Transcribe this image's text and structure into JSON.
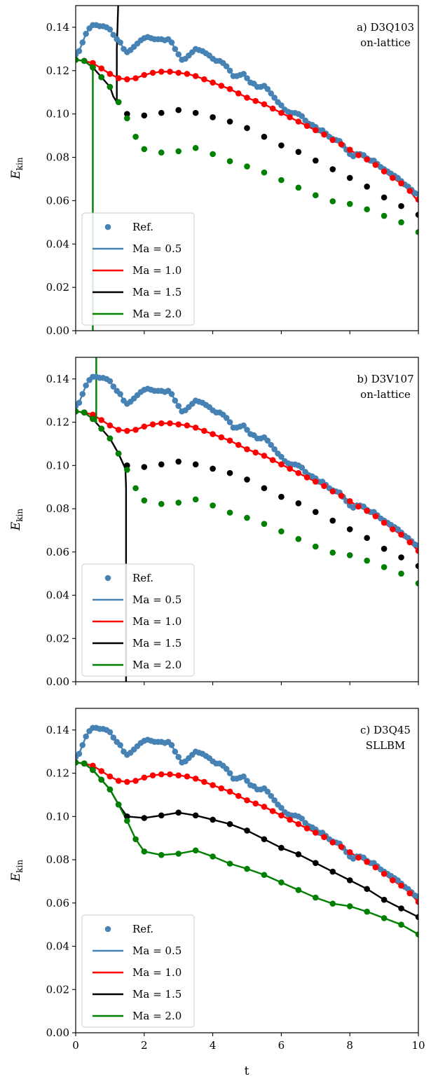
{
  "figure": {
    "xlabel": "t",
    "ylabel_main": "E",
    "ylabel_sub": "kin"
  },
  "legend": {
    "entries": [
      {
        "label": "Ref.",
        "kind": "marker",
        "color": "#4682b4"
      },
      {
        "label": "Ma = 0.5",
        "kind": "line",
        "color": "#4682b4"
      },
      {
        "label": "Ma = 1.0",
        "kind": "line",
        "color": "#ff0000"
      },
      {
        "label": "Ma = 1.5",
        "kind": "line",
        "color": "#000000"
      },
      {
        "label": "Ma = 2.0",
        "kind": "line",
        "color": "#008000"
      }
    ]
  },
  "chart_data": [
    {
      "type": "line",
      "annotation": [
        "a) D3Q103",
        "on-lattice"
      ],
      "xlim": [
        0,
        10
      ],
      "ylim": [
        0,
        0.15
      ],
      "xticks": [
        0,
        2,
        4,
        6,
        8,
        10
      ],
      "yticks": [
        "0.00",
        "0.02",
        "0.04",
        "0.06",
        "0.08",
        "0.10",
        "0.12",
        "0.14"
      ],
      "show_xtick_labels": false,
      "legend_position": "lower-left",
      "reference_markers": {
        "name": "Ref.",
        "series": [
          {
            "ma": "0.5",
            "color": "#4682b4",
            "x": [
              0,
              0.1,
              0.2,
              0.3,
              0.4,
              0.5,
              0.6,
              0.7,
              0.8,
              0.9,
              1.0,
              1.1,
              1.2,
              1.3,
              1.4,
              1.5,
              1.6,
              1.7,
              1.8,
              1.9,
              2.0,
              2.1,
              2.2,
              2.3,
              2.4,
              2.5,
              2.6,
              2.7,
              2.8,
              2.9,
              3.0,
              3.1,
              3.2,
              3.3,
              3.4,
              3.5,
              3.6,
              3.7,
              3.8,
              3.9,
              4.0,
              4.1,
              4.2,
              4.3,
              4.4,
              4.5,
              4.6,
              4.7,
              4.8,
              4.9,
              5.0,
              5.1,
              5.2,
              5.3,
              5.4,
              5.5,
              5.6,
              5.7,
              5.8,
              5.9,
              6.0,
              6.1,
              6.2,
              6.3,
              6.4,
              6.5,
              6.6,
              6.7,
              6.8,
              6.9,
              7.0,
              7.1,
              7.2,
              7.3,
              7.4,
              7.5,
              7.6,
              7.7,
              7.8,
              7.9,
              8.0,
              8.1,
              8.2,
              8.3,
              8.4,
              8.5,
              8.6,
              8.7,
              8.8,
              8.9,
              9.0,
              9.1,
              9.2,
              9.3,
              9.4,
              9.5,
              9.6,
              9.7,
              9.8,
              9.9,
              10.0
            ],
            "y": [
              0.1275,
              0.129,
              0.133,
              0.137,
              0.1395,
              0.141,
              0.141,
              0.1405,
              0.1405,
              0.14,
              0.139,
              0.1365,
              0.1345,
              0.133,
              0.13,
              0.1285,
              0.1295,
              0.131,
              0.1325,
              0.134,
              0.135,
              0.1355,
              0.135,
              0.1345,
              0.1345,
              0.1345,
              0.134,
              0.1345,
              0.133,
              0.13,
              0.1275,
              0.125,
              0.1255,
              0.127,
              0.1285,
              0.13,
              0.1295,
              0.129,
              0.128,
              0.127,
              0.1255,
              0.1245,
              0.1245,
              0.1235,
              0.122,
              0.12,
              0.1175,
              0.1175,
              0.118,
              0.1185,
              0.1165,
              0.1145,
              0.114,
              0.1125,
              0.1125,
              0.113,
              0.1115,
              0.1095,
              0.1075,
              0.1055,
              0.104,
              0.102,
              0.101,
              0.1005,
              0.1005,
              0.1,
              0.099,
              0.097,
              0.0955,
              0.095,
              0.094,
              0.0925,
              0.0925,
              0.091,
              0.0895,
              0.0885,
              0.088,
              0.0875,
              0.0855,
              0.0835,
              0.0815,
              0.0805,
              0.0815,
              0.0815,
              0.081,
              0.0795,
              0.0785,
              0.0785,
              0.077,
              0.0755,
              0.0745,
              0.0735,
              0.0725,
              0.0715,
              0.0705,
              0.069,
              0.0675,
              0.0665,
              0.065,
              0.0635,
              0.063
            ]
          },
          {
            "ma": "1.0",
            "color": "#ff0000",
            "x": [
              0,
              0.25,
              0.5,
              0.75,
              1.0,
              1.25,
              1.5,
              1.75,
              2.0,
              2.25,
              2.5,
              2.75,
              3.0,
              3.25,
              3.5,
              3.75,
              4.0,
              4.25,
              4.5,
              4.75,
              5.0,
              5.25,
              5.5,
              5.75,
              6.0,
              6.25,
              6.5,
              6.75,
              7.0,
              7.25,
              7.5,
              7.75,
              8.0,
              8.25,
              8.5,
              8.75,
              9.0,
              9.25,
              9.5,
              9.75,
              10.0
            ],
            "y": [
              0.125,
              0.1245,
              0.1235,
              0.121,
              0.1185,
              0.1165,
              0.116,
              0.1165,
              0.118,
              0.119,
              0.1195,
              0.1195,
              0.119,
              0.1185,
              0.1175,
              0.116,
              0.1145,
              0.113,
              0.1115,
              0.1095,
              0.1075,
              0.106,
              0.1045,
              0.1025,
              0.1005,
              0.0985,
              0.0965,
              0.0945,
              0.0925,
              0.0905,
              0.088,
              0.086,
              0.0835,
              0.081,
              0.079,
              0.0765,
              0.0735,
              0.0705,
              0.068,
              0.0645,
              0.0605
            ]
          },
          {
            "ma": "1.5",
            "color": "#000000",
            "x": [
              0,
              0.25,
              0.5,
              0.75,
              1.0,
              1.25,
              1.5,
              2.0,
              2.5,
              3.0,
              3.5,
              4.0,
              4.5,
              5.0,
              5.5,
              6.0,
              6.5,
              7.0,
              7.5,
              8.0,
              8.5,
              9.0,
              9.5,
              10.0
            ],
            "y": [
              0.125,
              0.1245,
              0.1215,
              0.117,
              0.1125,
              0.1055,
              0.1,
              0.0993,
              0.1005,
              0.1018,
              0.1005,
              0.0985,
              0.0965,
              0.0935,
              0.0895,
              0.0855,
              0.0825,
              0.0785,
              0.0745,
              0.0705,
              0.0665,
              0.0615,
              0.0575,
              0.0535
            ]
          },
          {
            "ma": "2.0",
            "color": "#008000",
            "x": [
              0,
              0.25,
              0.5,
              0.75,
              1.0,
              1.25,
              1.5,
              1.75,
              2.0,
              2.5,
              3.0,
              3.5,
              4.0,
              4.5,
              5.0,
              5.5,
              6.0,
              6.5,
              7.0,
              7.5,
              8.0,
              8.5,
              9.0,
              9.5,
              10.0
            ],
            "y": [
              0.125,
              0.1245,
              0.1215,
              0.117,
              0.1125,
              0.1055,
              0.098,
              0.0895,
              0.0838,
              0.0822,
              0.0828,
              0.0843,
              0.0815,
              0.0782,
              0.0758,
              0.073,
              0.0695,
              0.066,
              0.0625,
              0.0597,
              0.0585,
              0.056,
              0.053,
              0.05,
              0.0455
            ]
          }
        ]
      },
      "simulation_lines": [
        {
          "ma": "0.5",
          "color": "#4682b4",
          "x": [
            0,
            0.1,
            0.2,
            0.3,
            0.4,
            0.5,
            0.6,
            0.7,
            0.8,
            0.9,
            1.0,
            1.1,
            1.2,
            1.3,
            1.4,
            1.5,
            1.6,
            1.7,
            1.8,
            1.9,
            2.0,
            2.1,
            2.2,
            2.3,
            2.4,
            2.5,
            2.6,
            2.7,
            2.8,
            2.9,
            3.0,
            3.1,
            3.2,
            3.3,
            3.4,
            3.5,
            3.6,
            3.7,
            3.8,
            3.9,
            4.0,
            4.1,
            4.2,
            4.3,
            4.4,
            4.5,
            4.6,
            4.7,
            4.8,
            4.9,
            5.0,
            5.1,
            5.2,
            5.3,
            5.4,
            5.5,
            5.6,
            5.7,
            5.8,
            5.9,
            6.0,
            6.1,
            6.2,
            6.3,
            6.4,
            6.5,
            6.6,
            6.7,
            6.8,
            6.9,
            7.0,
            7.1,
            7.2,
            7.3,
            7.4,
            7.5,
            7.6,
            7.7,
            7.8,
            7.9,
            8.0,
            8.1,
            8.2,
            8.3,
            8.4,
            8.5,
            8.6,
            8.7,
            8.8,
            8.9,
            9.0,
            9.1,
            9.2,
            9.3,
            9.4,
            9.5,
            9.6,
            9.7,
            9.8,
            9.9,
            10.0
          ],
          "y": [
            0.1275,
            0.129,
            0.133,
            0.137,
            0.1395,
            0.141,
            0.141,
            0.1405,
            0.1405,
            0.14,
            0.139,
            0.1365,
            0.1345,
            0.133,
            0.13,
            0.1285,
            0.1295,
            0.131,
            0.1325,
            0.134,
            0.135,
            0.1355,
            0.135,
            0.1345,
            0.1345,
            0.1345,
            0.134,
            0.1345,
            0.133,
            0.13,
            0.1275,
            0.125,
            0.1255,
            0.127,
            0.1285,
            0.13,
            0.1295,
            0.129,
            0.128,
            0.127,
            0.1255,
            0.1245,
            0.1245,
            0.1235,
            0.122,
            0.12,
            0.1175,
            0.1175,
            0.118,
            0.1185,
            0.1165,
            0.1145,
            0.114,
            0.1125,
            0.1125,
            0.113,
            0.1115,
            0.1095,
            0.1075,
            0.1055,
            0.104,
            0.102,
            0.101,
            0.1005,
            0.1005,
            0.1,
            0.099,
            0.097,
            0.0955,
            0.095,
            0.094,
            0.0925,
            0.0925,
            0.091,
            0.0895,
            0.0885,
            0.088,
            0.0875,
            0.0855,
            0.0835,
            0.0815,
            0.0805,
            0.0815,
            0.0815,
            0.081,
            0.0795,
            0.0785,
            0.0785,
            0.077,
            0.0755,
            0.0745,
            0.0735,
            0.0725,
            0.0715,
            0.0705,
            0.069,
            0.0675,
            0.0665,
            0.065,
            0.0635,
            0.063
          ]
        },
        {
          "ma": "1.0",
          "color": "#ff0000",
          "x": [
            0,
            0.25,
            0.5,
            0.75,
            1.0,
            1.25,
            1.5,
            1.75,
            2.0,
            2.25,
            2.5,
            2.75,
            3.0,
            3.25,
            3.5,
            3.75,
            4.0,
            4.25,
            4.5,
            4.75,
            5.0,
            5.25,
            5.5,
            5.75,
            6.0,
            6.25,
            6.5,
            6.75,
            7.0,
            7.25,
            7.5,
            7.75,
            8.0,
            8.25,
            8.5,
            8.75,
            9.0,
            9.25,
            9.5,
            9.75,
            10.0
          ],
          "y": [
            0.125,
            0.1245,
            0.1235,
            0.121,
            0.1185,
            0.1165,
            0.116,
            0.1165,
            0.118,
            0.119,
            0.1195,
            0.1195,
            0.119,
            0.1185,
            0.1175,
            0.116,
            0.1145,
            0.113,
            0.1115,
            0.1095,
            0.1075,
            0.106,
            0.1045,
            0.1025,
            0.1005,
            0.0985,
            0.0965,
            0.0945,
            0.0925,
            0.0905,
            0.088,
            0.086,
            0.0835,
            0.081,
            0.079,
            0.0765,
            0.0735,
            0.0705,
            0.068,
            0.0645,
            0.0595
          ]
        },
        {
          "ma": "1.5",
          "color": "#000000",
          "x": [
            0,
            0.25,
            0.5,
            0.75,
            1.0,
            1.1,
            1.2,
            1.2,
            1.25
          ],
          "y": [
            0.125,
            0.1245,
            0.1215,
            0.117,
            0.1125,
            0.108,
            0.1055,
            0.13,
            0.155
          ]
        },
        {
          "ma": "2.0",
          "color": "#008000",
          "x": [
            0,
            0.25,
            0.45,
            0.5,
            0.5
          ],
          "y": [
            0.125,
            0.1245,
            0.122,
            0.12,
            0.0
          ]
        }
      ]
    },
    {
      "type": "line",
      "annotation": [
        "b) D3V107",
        "on-lattice"
      ],
      "xlim": [
        0,
        10
      ],
      "ylim": [
        0,
        0.15
      ],
      "xticks": [
        0,
        2,
        4,
        6,
        8,
        10
      ],
      "yticks": [
        "0.00",
        "0.02",
        "0.04",
        "0.06",
        "0.08",
        "0.10",
        "0.12",
        "0.14"
      ],
      "show_xtick_labels": false,
      "legend_position": "lower-left",
      "reference_markers": {
        "same_as_panel": 0
      },
      "simulation_lines": [
        {
          "ma": "0.5",
          "color": "#4682b4",
          "same_as_reference": true
        },
        {
          "ma": "1.0",
          "color": "#ff0000",
          "same_as_reference": true
        },
        {
          "ma": "1.5",
          "color": "#000000",
          "x": [
            0,
            0.25,
            0.5,
            0.75,
            1.0,
            1.25,
            1.45,
            1.47,
            1.47
          ],
          "y": [
            0.125,
            0.1245,
            0.1215,
            0.117,
            0.1125,
            0.1055,
            0.0985,
            0.09,
            0.0
          ]
        },
        {
          "ma": "2.0",
          "color": "#008000",
          "x": [
            0,
            0.25,
            0.5,
            0.6,
            0.6
          ],
          "y": [
            0.125,
            0.1245,
            0.1215,
            0.12,
            0.155
          ]
        }
      ]
    },
    {
      "type": "line",
      "annotation": [
        "c) D3Q45",
        "SLLBM"
      ],
      "xlim": [
        0,
        10
      ],
      "ylim": [
        0,
        0.15
      ],
      "xticks": [
        0,
        2,
        4,
        6,
        8,
        10
      ],
      "yticks": [
        "0.00",
        "0.02",
        "0.04",
        "0.06",
        "0.08",
        "0.10",
        "0.12",
        "0.14"
      ],
      "xtick_labels": [
        "0",
        "2",
        "4",
        "6",
        "8",
        "10"
      ],
      "show_xtick_labels": true,
      "legend_position": "lower-left",
      "reference_markers": {
        "same_as_panel": 0
      },
      "simulation_lines": [
        {
          "ma": "0.5",
          "color": "#4682b4",
          "same_as_reference": true
        },
        {
          "ma": "1.0",
          "color": "#ff0000",
          "same_as_reference": true
        },
        {
          "ma": "1.5",
          "color": "#000000",
          "same_as_reference": true
        },
        {
          "ma": "2.0",
          "color": "#008000",
          "same_as_reference": true
        }
      ]
    }
  ]
}
